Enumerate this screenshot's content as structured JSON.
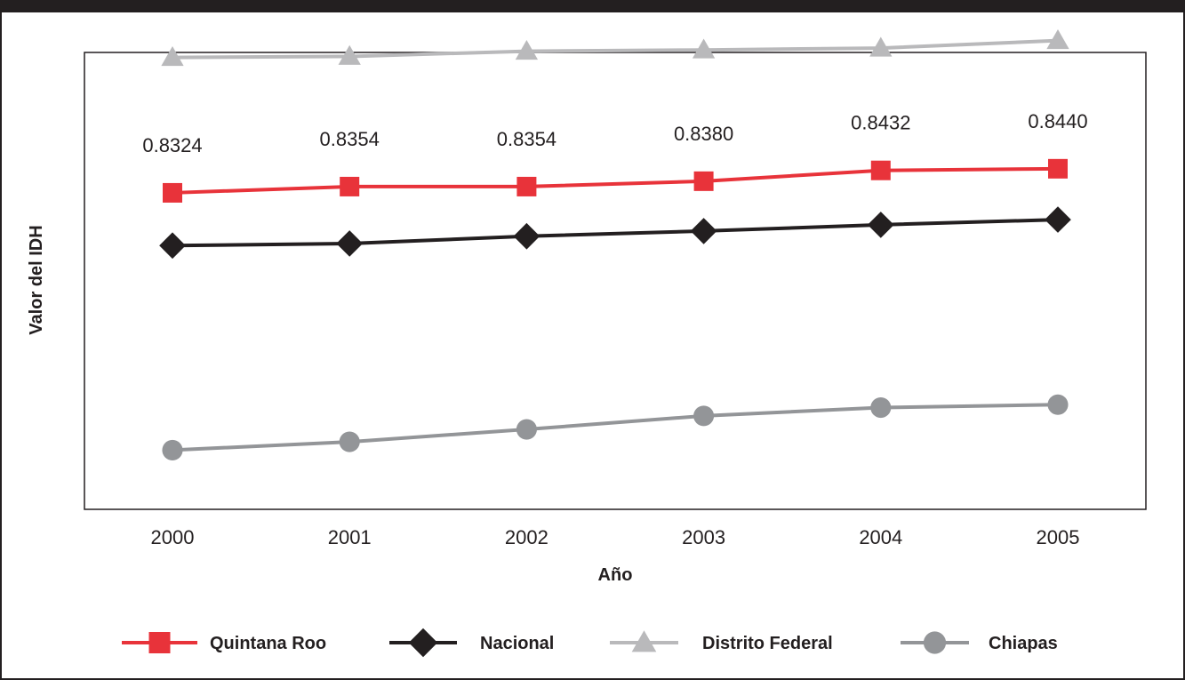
{
  "chart_data": {
    "type": "line",
    "xlabel": "Año",
    "ylabel": "Valor del IDH",
    "x": [
      "2000",
      "2001",
      "2002",
      "2003",
      "2004",
      "2005"
    ],
    "ylim": [
      0.68,
      0.9
    ],
    "grid": false,
    "legend_placement": "bottom",
    "data_labels_series": "Quintana Roo",
    "series": [
      {
        "name": "Quintana Roo",
        "color": "#e8333a",
        "marker": "square",
        "values": [
          0.8324,
          0.8354,
          0.8354,
          0.838,
          0.8432,
          0.844
        ],
        "labels": [
          "0.8324",
          "0.8354",
          "0.8354",
          "0.8380",
          "0.8432",
          "0.8440"
        ]
      },
      {
        "name": "Nacional",
        "color": "#231f20",
        "marker": "diamond",
        "values": [
          0.807,
          0.808,
          0.8115,
          0.814,
          0.817,
          0.8195
        ]
      },
      {
        "name": "Distrito Federal",
        "color": "#b9b9bb",
        "marker": "triangle",
        "values": [
          0.8976,
          0.8981,
          0.9006,
          0.9012,
          0.9021,
          0.9057
        ]
      },
      {
        "name": "Chiapas",
        "color": "#939598",
        "marker": "circle",
        "values": [
          0.7085,
          0.7125,
          0.7185,
          0.725,
          0.729,
          0.7304
        ]
      }
    ]
  }
}
